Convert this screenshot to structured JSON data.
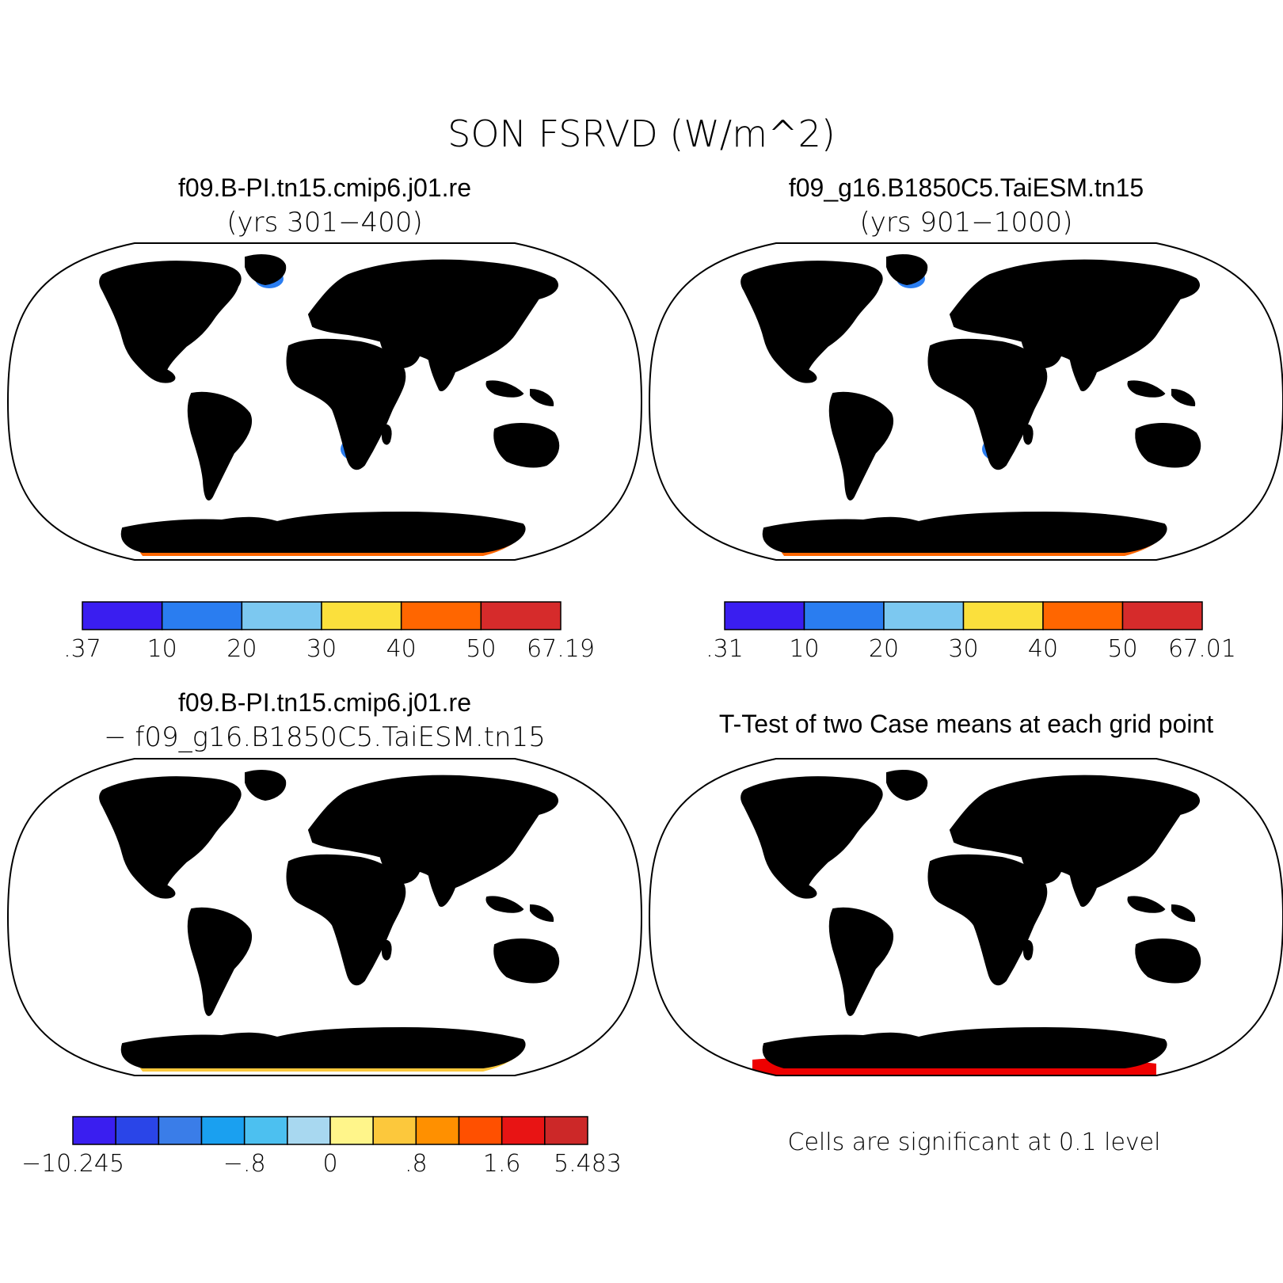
{
  "main_title": "SON FSRVD (W/m^2)",
  "panels": [
    {
      "title_line1": "f09.B-PI.tn15.cmip6.j01.re",
      "title_line2": "(yrs 301−400)",
      "colorbar": {
        "labels": [
          ".37",
          "10",
          "20",
          "30",
          "40",
          "50",
          "67.19"
        ],
        "colors": [
          "#3a1ef0",
          "#2a7df0",
          "#7cc8f0",
          "#fbe03c",
          "#ff6600",
          "#d62b2b"
        ]
      }
    },
    {
      "title_line1": "f09_g16.B1850C5.TaiESM.tn15",
      "title_line2": "(yrs 901−1000)",
      "colorbar": {
        "labels": [
          ".31",
          "10",
          "20",
          "30",
          "40",
          "50",
          "67.01"
        ],
        "colors": [
          "#3a1ef0",
          "#2a7df0",
          "#7cc8f0",
          "#fbe03c",
          "#ff6600",
          "#d62b2b"
        ]
      }
    },
    {
      "title_line1": "f09.B-PI.tn15.cmip6.j01.re",
      "title_line2": "− f09_g16.B1850C5.TaiESM.tn15",
      "colorbar": {
        "labels": [
          "−10.245",
          "−.8",
          "0",
          ".8",
          "1.6",
          "5.483"
        ],
        "label_boxes": [
          0,
          4,
          6,
          8,
          10,
          12
        ],
        "colors": [
          "#3a1ef0",
          "#2a45e8",
          "#3a7de8",
          "#1aa0f0",
          "#4cc0f0",
          "#a8d8f0",
          "#fff58a",
          "#fcc83c",
          "#ff9000",
          "#ff5000",
          "#e81414",
          "#cc2828"
        ]
      }
    },
    {
      "title_line1": "T-Test of two Case means at each grid point",
      "note": "Cells are significant at 0.1 level",
      "sig_color": "#ee0000"
    }
  ]
}
